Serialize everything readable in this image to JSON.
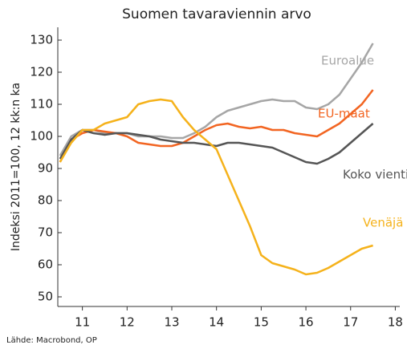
{
  "chart_data": {
    "type": "line",
    "title": "Suomen tavaraviennin arvo",
    "y_label": "Indeksi 2011=100, 12 kk:n ka",
    "source": "Lähde: Macrobond, OP",
    "x": [
      10.5,
      10.75,
      11,
      11.25,
      11.5,
      11.75,
      12,
      12.25,
      12.5,
      12.75,
      13,
      13.25,
      13.5,
      13.75,
      14,
      14.25,
      14.5,
      14.75,
      15,
      15.25,
      15.5,
      15.75,
      16,
      16.25,
      16.5,
      16.75,
      17,
      17.25,
      17.5
    ],
    "series": [
      {
        "name": "Euroalue",
        "color": "#a6a6a6",
        "values": [
          94,
          100,
          102,
          102,
          101,
          101,
          101,
          100,
          100,
          100,
          99.5,
          99.5,
          101,
          103,
          106,
          108,
          109,
          110,
          111,
          111.5,
          111,
          111,
          109,
          108.5,
          110,
          113,
          118,
          123,
          129
        ]
      },
      {
        "name": "EU-maat",
        "color": "#f26522",
        "values": [
          92,
          99,
          101,
          102,
          101.5,
          101,
          100,
          98,
          97.5,
          97,
          97,
          98,
          100,
          102,
          103.5,
          104,
          103,
          102.5,
          103,
          102,
          102,
          101,
          100.5,
          100,
          102,
          104,
          107,
          110,
          114.5
        ]
      },
      {
        "name": "Koko vienti",
        "color": "#555555",
        "values": [
          93,
          99,
          102,
          101,
          100.5,
          101,
          101,
          100.5,
          100,
          99,
          98.5,
          98,
          98,
          97.5,
          97,
          98,
          98,
          97.5,
          97,
          96.5,
          95,
          93.5,
          92,
          91.5,
          93,
          95,
          98,
          101,
          104
        ]
      },
      {
        "name": "Venäjä",
        "color": "#f5b21b",
        "values": [
          92,
          98,
          102,
          102,
          104,
          105,
          106,
          110,
          111,
          111.5,
          111,
          106,
          102,
          99,
          96,
          88,
          80,
          72,
          63,
          60.5,
          59.5,
          58.5,
          57,
          57.5,
          59,
          61,
          63,
          65,
          66
        ]
      }
    ],
    "xlim": [
      10.45,
      18.1
    ],
    "ylim": [
      47,
      134
    ],
    "xticks": [
      11,
      12,
      13,
      14,
      15,
      16,
      17,
      18
    ],
    "yticks": [
      50,
      60,
      70,
      80,
      90,
      100,
      110,
      120,
      130
    ],
    "grid": false
  }
}
